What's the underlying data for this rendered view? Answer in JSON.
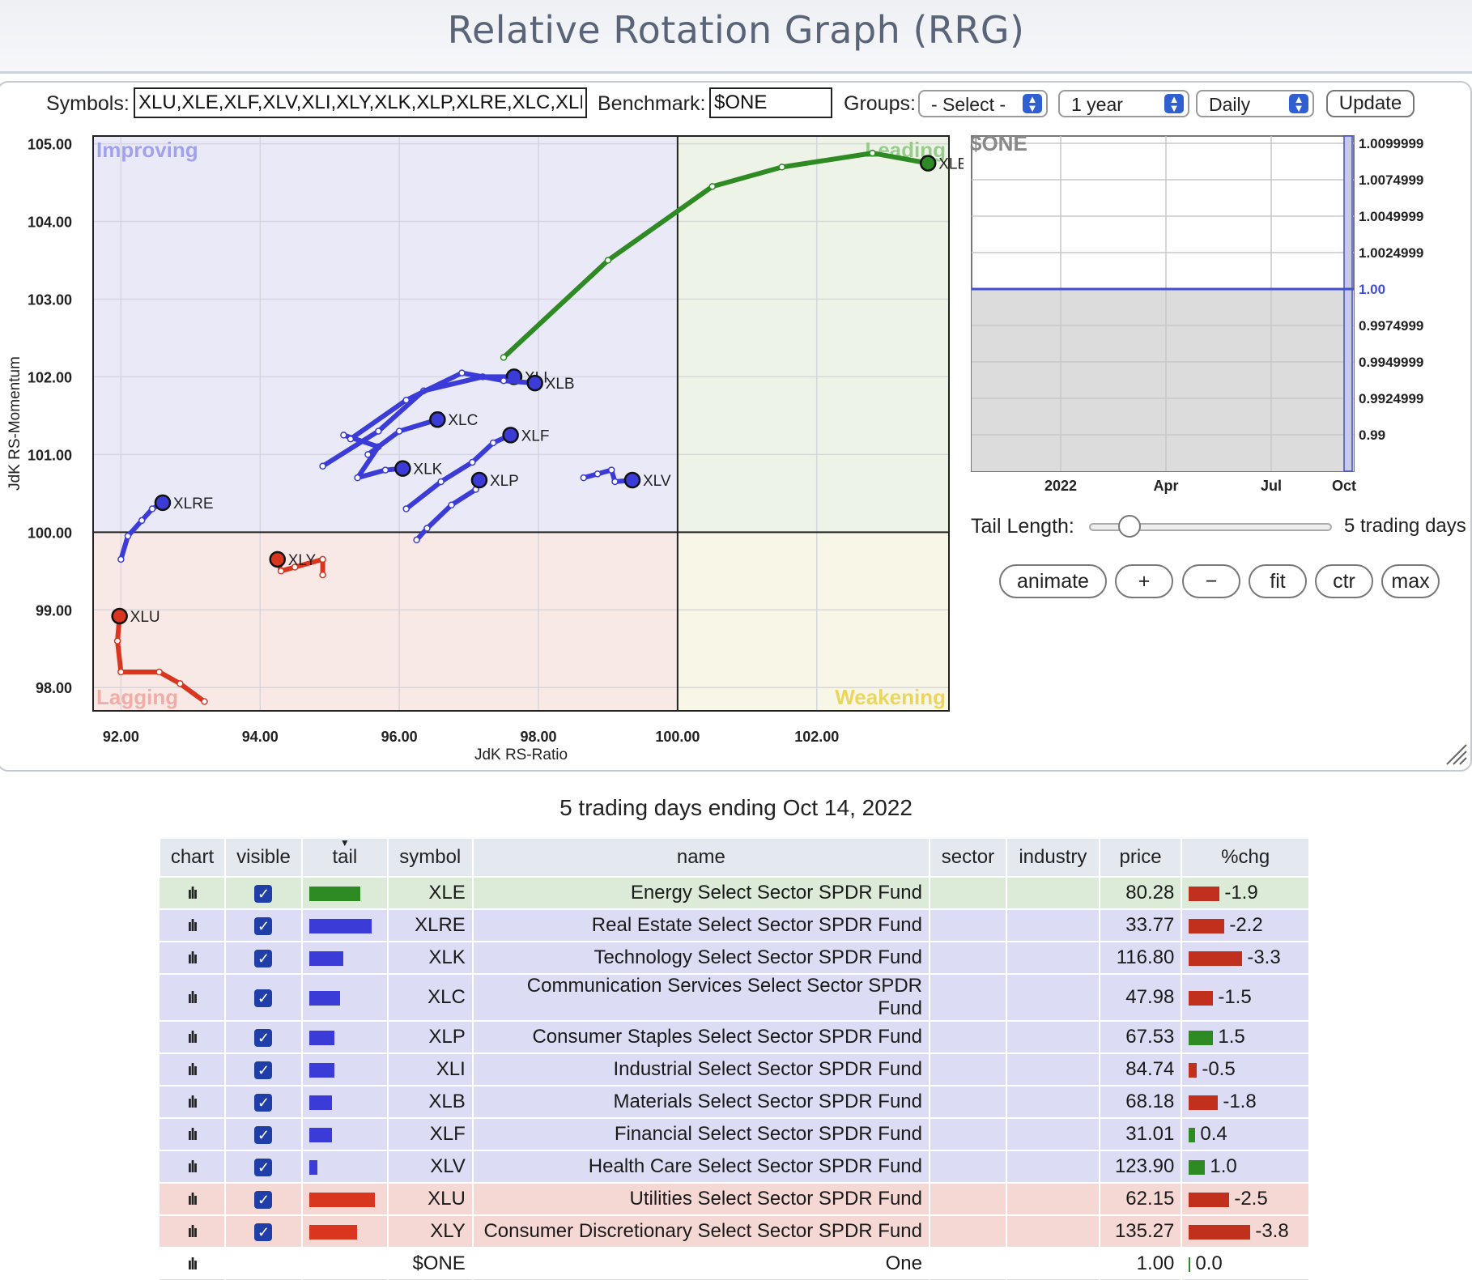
{
  "page": {
    "title": "Relative Rotation Graph (RRG)"
  },
  "controls": {
    "symbols_label": "Symbols:",
    "symbols_value": "XLU,XLE,XLF,XLV,XLI,XLY,XLK,XLP,XLRE,XLC,XLB",
    "benchmark_label": "Benchmark:",
    "benchmark_value": "$ONE",
    "groups_label": "Groups:",
    "groups_selected": "- Select -",
    "period_selected": "1 year",
    "frequency_selected": "Daily",
    "update_label": "Update"
  },
  "rrg": {
    "quadrants": {
      "improving": "Improving",
      "leading": "Leading",
      "lagging": "Lagging",
      "weakening": "Weakening"
    },
    "colors": {
      "improving": "#3b3bd8",
      "leading": "#2e8a22",
      "lagging": "#d9361f",
      "weakening": "#e0c02a"
    },
    "xlabel": "JdK RS-Ratio",
    "ylabel": "JdK RS-Momentum",
    "xlim": [
      91.6,
      103.9
    ],
    "ylim": [
      97.7,
      105.1
    ],
    "center": [
      100,
      100
    ],
    "x_ticks": [
      "92.00",
      "94.00",
      "96.00",
      "98.00",
      "100.00",
      "102.00"
    ],
    "x_tick_values": [
      92,
      94,
      96,
      98,
      100,
      102
    ],
    "y_ticks": [
      "98.00",
      "99.00",
      "100.00",
      "101.00",
      "102.00",
      "103.00",
      "104.00",
      "105.00"
    ],
    "y_tick_values": [
      98,
      99,
      100,
      101,
      102,
      103,
      104,
      105
    ]
  },
  "chart_data": {
    "type": "scatter",
    "xlabel": "JdK RS-Ratio",
    "ylabel": "JdK RS-Momentum",
    "xlim": [
      91.6,
      103.9
    ],
    "ylim": [
      97.7,
      105.1
    ],
    "series": [
      {
        "name": "XLE",
        "color": "#2e8a22",
        "points": [
          [
            97.5,
            102.25
          ],
          [
            99.0,
            103.5
          ],
          [
            100.5,
            104.45
          ],
          [
            101.5,
            104.7
          ],
          [
            102.8,
            104.88
          ],
          [
            103.6,
            104.75
          ]
        ]
      },
      {
        "name": "XLRE",
        "color": "#3b3bd8",
        "points": [
          [
            92.0,
            99.65
          ],
          [
            92.1,
            99.95
          ],
          [
            92.3,
            100.15
          ],
          [
            92.45,
            100.3
          ],
          [
            92.6,
            100.38
          ]
        ]
      },
      {
        "name": "XLK",
        "color": "#3b3bd8",
        "points": [
          [
            95.2,
            101.25
          ],
          [
            95.7,
            101.1
          ],
          [
            95.4,
            100.7
          ],
          [
            95.8,
            100.8
          ],
          [
            96.05,
            100.82
          ]
        ]
      },
      {
        "name": "XLC",
        "color": "#3b3bd8",
        "points": [
          [
            95.55,
            101.0
          ],
          [
            96.0,
            101.3
          ],
          [
            96.55,
            101.45
          ]
        ]
      },
      {
        "name": "XLP",
        "color": "#3b3bd8",
        "points": [
          [
            96.25,
            99.9
          ],
          [
            96.4,
            100.05
          ],
          [
            96.75,
            100.35
          ],
          [
            97.1,
            100.55
          ],
          [
            97.15,
            100.67
          ]
        ]
      },
      {
        "name": "XLI",
        "color": "#3b3bd8",
        "points": [
          [
            94.9,
            100.85
          ],
          [
            95.7,
            101.3
          ],
          [
            96.35,
            101.82
          ],
          [
            97.2,
            102.0
          ],
          [
            97.65,
            102.0
          ]
        ]
      },
      {
        "name": "XLB",
        "color": "#3b3bd8",
        "points": [
          [
            95.3,
            101.2
          ],
          [
            96.1,
            101.7
          ],
          [
            96.9,
            102.05
          ],
          [
            97.5,
            101.95
          ],
          [
            97.95,
            101.92
          ]
        ]
      },
      {
        "name": "XLF",
        "color": "#3b3bd8",
        "points": [
          [
            96.1,
            100.3
          ],
          [
            96.6,
            100.65
          ],
          [
            97.05,
            100.9
          ],
          [
            97.35,
            101.15
          ],
          [
            97.6,
            101.25
          ]
        ]
      },
      {
        "name": "XLV",
        "color": "#3b3bd8",
        "points": [
          [
            98.65,
            100.7
          ],
          [
            98.85,
            100.75
          ],
          [
            99.05,
            100.8
          ],
          [
            99.1,
            100.65
          ],
          [
            99.35,
            100.67
          ]
        ]
      },
      {
        "name": "XLU",
        "color": "#d9361f",
        "points": [
          [
            93.2,
            97.82
          ],
          [
            92.85,
            98.05
          ],
          [
            92.55,
            98.2
          ],
          [
            92.0,
            98.2
          ],
          [
            91.95,
            98.6
          ],
          [
            91.98,
            98.92
          ]
        ]
      },
      {
        "name": "XLY",
        "color": "#d9361f",
        "points": [
          [
            94.9,
            99.45
          ],
          [
            94.9,
            99.65
          ],
          [
            94.5,
            99.55
          ],
          [
            94.3,
            99.5
          ],
          [
            94.25,
            99.65
          ]
        ]
      }
    ]
  },
  "benchmark_chart": {
    "label": "$ONE",
    "y_ticks": [
      "1.0099999",
      "1.0074999",
      "1.0049999",
      "1.0024999",
      "1.00",
      "0.9974999",
      "0.9949999",
      "0.9924999",
      "0.99"
    ],
    "y_tick_values": [
      1.01,
      1.0075,
      1.005,
      1.0025,
      1.0,
      0.9975,
      0.995,
      0.9925,
      0.99
    ],
    "x_ticks": [
      "2022",
      "Apr",
      "Jul",
      "Oct"
    ],
    "ylim": [
      0.9875,
      1.0105
    ],
    "value": 1.0,
    "line_color": "#4050d0"
  },
  "tail": {
    "label": "Tail Length:",
    "value_text": "5 trading days",
    "slider_fraction": 0.16
  },
  "buttons": {
    "animate": "animate",
    "plus": "+",
    "minus": "−",
    "fit": "fit",
    "ctr": "ctr",
    "max": "max"
  },
  "caption": "5 trading days ending Oct 14, 2022",
  "table": {
    "headers": {
      "chart": "chart",
      "visible": "visible",
      "tail": "tail",
      "symbol": "symbol",
      "name": "name",
      "sector": "sector",
      "industry": "industry",
      "price": "price",
      "chg": "%chg"
    },
    "rows": [
      {
        "symbol": "XLE",
        "name": "Energy Select Sector SPDR Fund",
        "price": "80.28",
        "chg": "-1.9",
        "chg_value": -1.9,
        "tail_len": 0.45,
        "quadrant": "leading",
        "visible": true
      },
      {
        "symbol": "XLRE",
        "name": "Real Estate Select Sector SPDR Fund",
        "price": "33.77",
        "chg": "-2.2",
        "chg_value": -2.2,
        "tail_len": 0.55,
        "quadrant": "improving",
        "visible": true
      },
      {
        "symbol": "XLK",
        "name": "Technology Select Sector SPDR Fund",
        "price": "116.80",
        "chg": "-3.3",
        "chg_value": -3.3,
        "tail_len": 0.3,
        "quadrant": "improving",
        "visible": true
      },
      {
        "symbol": "XLC",
        "name": "Communication Services Select Sector SPDR Fund",
        "price": "47.98",
        "chg": "-1.5",
        "chg_value": -1.5,
        "tail_len": 0.27,
        "quadrant": "improving",
        "visible": true
      },
      {
        "symbol": "XLP",
        "name": "Consumer Staples Select Sector SPDR Fund",
        "price": "67.53",
        "chg": "1.5",
        "chg_value": 1.5,
        "tail_len": 0.22,
        "quadrant": "improving",
        "visible": true
      },
      {
        "symbol": "XLI",
        "name": "Industrial Select Sector SPDR Fund",
        "price": "84.74",
        "chg": "-0.5",
        "chg_value": -0.5,
        "tail_len": 0.22,
        "quadrant": "improving",
        "visible": true
      },
      {
        "symbol": "XLB",
        "name": "Materials Select Sector SPDR Fund",
        "price": "68.18",
        "chg": "-1.8",
        "chg_value": -1.8,
        "tail_len": 0.2,
        "quadrant": "improving",
        "visible": true
      },
      {
        "symbol": "XLF",
        "name": "Financial Select Sector SPDR Fund",
        "price": "31.01",
        "chg": "0.4",
        "chg_value": 0.4,
        "tail_len": 0.2,
        "quadrant": "improving",
        "visible": true
      },
      {
        "symbol": "XLV",
        "name": "Health Care Select Sector SPDR Fund",
        "price": "123.90",
        "chg": "1.0",
        "chg_value": 1.0,
        "tail_len": 0.07,
        "quadrant": "improving",
        "visible": true
      },
      {
        "symbol": "XLU",
        "name": "Utilities Select Sector SPDR Fund",
        "price": "62.15",
        "chg": "-2.5",
        "chg_value": -2.5,
        "tail_len": 0.58,
        "quadrant": "lagging",
        "visible": true
      },
      {
        "symbol": "XLY",
        "name": "Consumer Discretionary Select Sector SPDR Fund",
        "price": "135.27",
        "chg": "-3.8",
        "chg_value": -3.8,
        "tail_len": 0.42,
        "quadrant": "lagging",
        "visible": true
      },
      {
        "symbol": "$ONE",
        "name": "One",
        "price": "1.00",
        "chg": "0.0",
        "chg_value": 0.0,
        "tail_len": 0,
        "quadrant": "none",
        "visible": false
      }
    ]
  }
}
